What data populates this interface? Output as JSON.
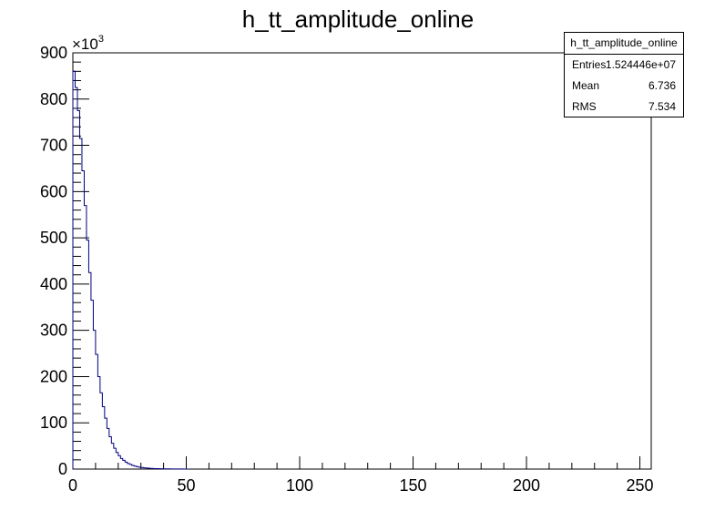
{
  "chart_data": {
    "type": "histogram",
    "title": "h_tt_amplitude_online",
    "xlabel": "",
    "ylabel": "",
    "y_scale_label": "×10",
    "y_scale_exponent": "3",
    "xlim": [
      0,
      255
    ],
    "ylim": [
      0,
      900
    ],
    "x_ticks": [
      "0",
      "50",
      "100",
      "150",
      "200",
      "250"
    ],
    "y_ticks": [
      "0",
      "100",
      "200",
      "300",
      "400",
      "500",
      "600",
      "700",
      "800",
      "900"
    ],
    "bin_width": 1,
    "values_thousands": [
      860,
      825,
      775,
      715,
      645,
      570,
      495,
      425,
      365,
      300,
      248,
      200,
      165,
      135,
      110,
      88,
      70,
      56,
      45,
      36,
      29,
      23,
      19,
      15,
      12,
      10,
      8,
      6.5,
      5.2,
      4.2,
      3.4,
      2.8,
      2.3,
      1.9,
      1.6,
      1.3,
      1.1,
      0.9,
      0.8,
      0.7,
      0.6,
      0.5,
      0.4,
      0.35,
      0.3,
      0.25,
      0.2,
      0.18,
      0.15,
      0.12,
      0.1
    ],
    "line_color": "#00007f"
  },
  "stats": {
    "name": "h_tt_amplitude_online",
    "entries_label": "Entries",
    "entries_value": "1.524446e+07",
    "mean_label": "Mean",
    "mean_value": "6.736",
    "rms_label": "RMS",
    "rms_value": "7.534"
  }
}
